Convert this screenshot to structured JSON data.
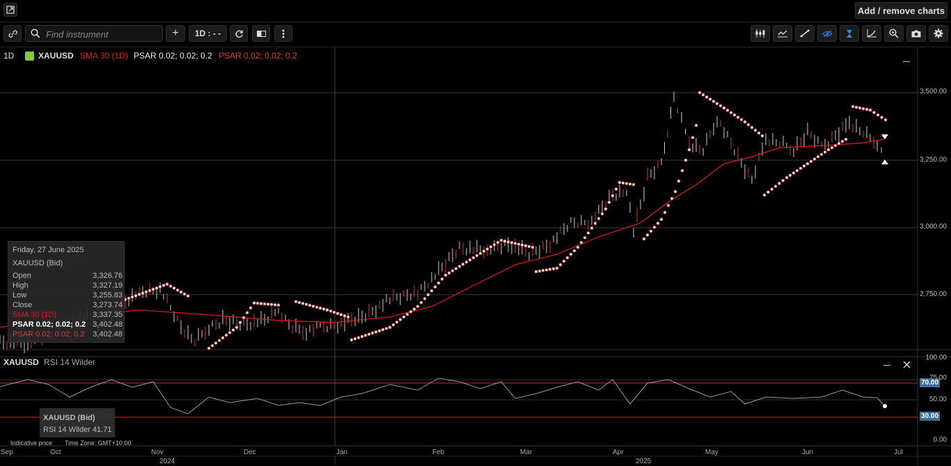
{
  "topbar": {
    "add_remove_label": "Add / remove charts"
  },
  "toolbar": {
    "search_placeholder": "Find instrument",
    "timeframe_label": "1D : - -",
    "add_symbol": "+"
  },
  "legend": {
    "timeframe": "1D",
    "symbol": "XAUUSD",
    "sma": "SMA 30 (1D)",
    "psar_white": "PSAR 0.02; 0.02; 0.2",
    "psar_red": "PSAR 0.02; 0.02; 0.2",
    "sma_color": "#e01b24",
    "psar_red_color": "#e53935",
    "symbol_icon_color": "#8bc34a"
  },
  "price_axis": [
    "3,500.00",
    "3,250.00",
    "3,000.00",
    "2,750.00"
  ],
  "tooltip": {
    "date": "Friday, 27 June 2025",
    "instrument": "XAUUSD (Bid)",
    "rows": [
      {
        "label": "Open",
        "value": "3,326.76"
      },
      {
        "label": "High",
        "value": "3,327.19"
      },
      {
        "label": "Low",
        "value": "3,255.83"
      },
      {
        "label": "Close",
        "value": "3,273.74"
      },
      {
        "label": "SMA 30 (1D)",
        "value": "3,337.35"
      },
      {
        "label": "PSAR 0.02; 0.02; 0.2",
        "value": "3,402.48"
      },
      {
        "label": "PSAR 0.02; 0.02; 0.2",
        "value": "3,402.48"
      }
    ]
  },
  "rsi_panel": {
    "symbol": "XAUUSD",
    "indicator": "RSI 14 Wilder",
    "axis": [
      "100.00",
      "75.00",
      "70.00",
      "50.00",
      "30.00",
      "0.00"
    ],
    "tip_instrument": "XAUUSD (Bid)",
    "tip_value": "RSI 14 Wilder 41.71"
  },
  "footer": {
    "indicative": "Indicative price",
    "timezone": "Time Zone: GMT+10:00"
  },
  "time_axis": {
    "months": [
      "Sep",
      "Oct",
      "Nov",
      "Dec",
      "Jan",
      "Feb",
      "Mar",
      "Apr",
      "May",
      "Jun",
      "Jul"
    ],
    "years": [
      "2024",
      "2025"
    ]
  }
}
